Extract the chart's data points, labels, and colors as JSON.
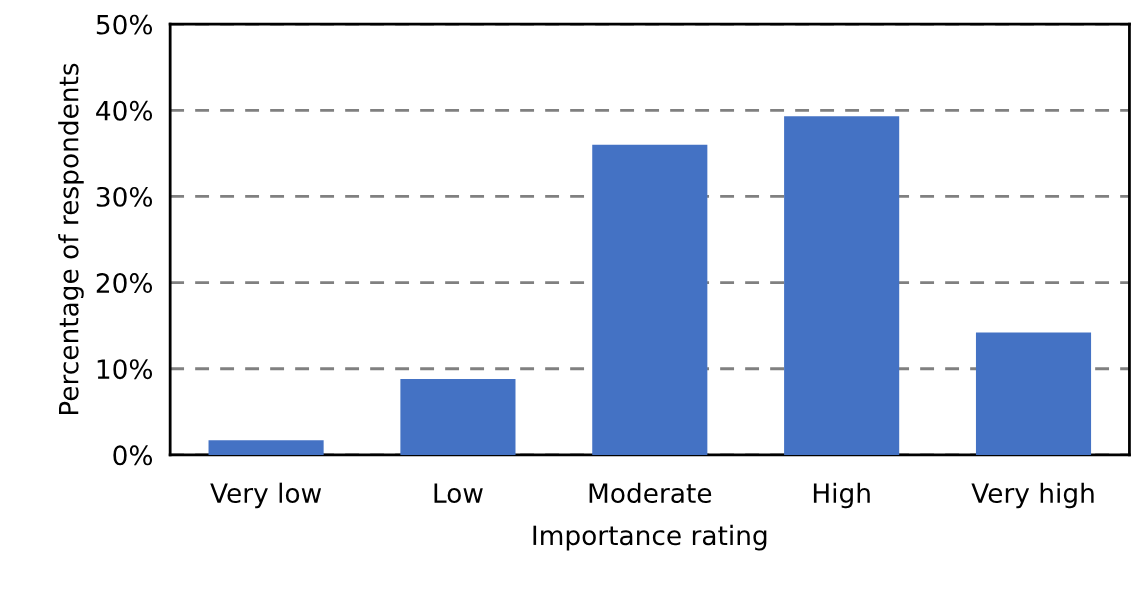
{
  "chart_data": {
    "type": "bar",
    "xlabel": "Importance rating",
    "ylabel": "Percentage of respondents",
    "categories": [
      "Very low",
      "Low",
      "Moderate",
      "High",
      "Very high"
    ],
    "values": [
      1.7,
      8.8,
      36.0,
      39.3,
      14.2
    ],
    "color": "#4472c4",
    "ylim": [
      0,
      50
    ],
    "yticks": [
      {
        "value": 0,
        "label": "0%"
      },
      {
        "value": 10,
        "label": "10%"
      },
      {
        "value": 20,
        "label": "20%"
      },
      {
        "value": 30,
        "label": "30%"
      },
      {
        "value": 40,
        "label": "40%"
      },
      {
        "value": 50,
        "label": "50%"
      }
    ],
    "grid": "y"
  }
}
